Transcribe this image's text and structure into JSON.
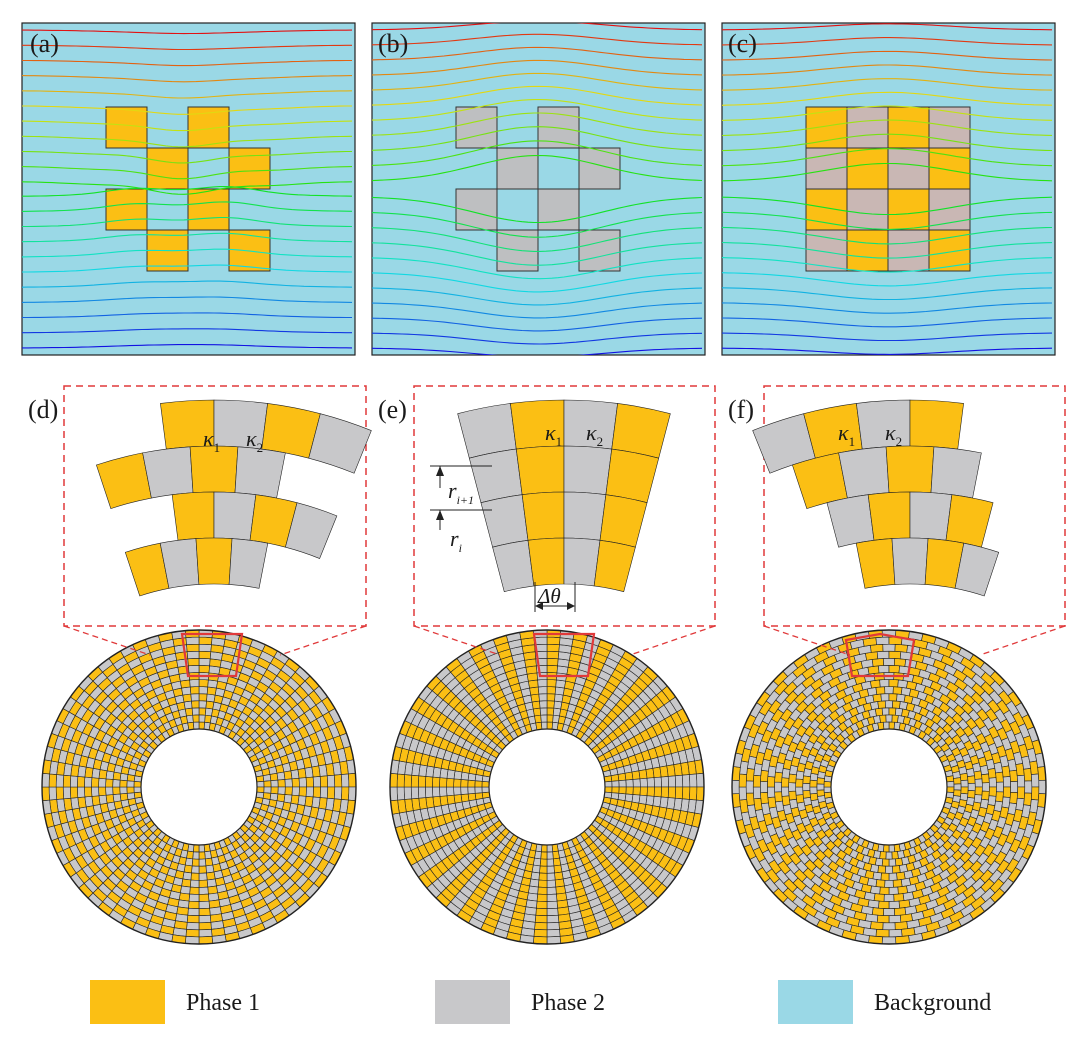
{
  "panels": {
    "a": "(a)",
    "b": "(b)",
    "c": "(c)",
    "d": "(d)",
    "e": "(e)",
    "f": "(f)"
  },
  "annotations": {
    "k1": "κ",
    "k2": "κ",
    "sub1": "1",
    "sub2": "2",
    "r_i1": "r",
    "r_i1_sub": "i+1",
    "r_i": "r",
    "r_i_sub": "i",
    "delta_theta": "Δθ"
  },
  "legend": [
    {
      "label": "Phase 1",
      "color": "#fbbf14"
    },
    {
      "label": "Phase 2",
      "color": "#c8c8ca"
    },
    {
      "label": "Background",
      "color": "#9ad8e6"
    }
  ],
  "colors": {
    "phase1": "#fbbf14",
    "phase2": "#c8c8ca",
    "background": "#9ad8e6",
    "dashed": "#e0393a"
  }
}
